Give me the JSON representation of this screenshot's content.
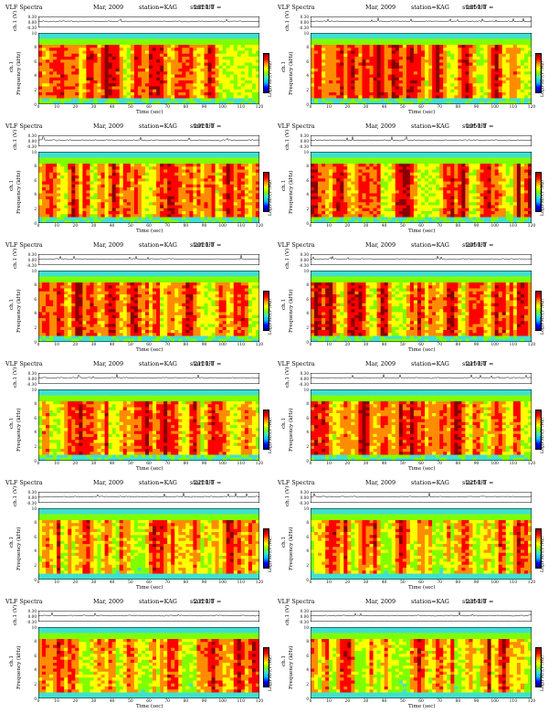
{
  "common": {
    "title": "VLF Spectra",
    "date": "Mar, 2009",
    "station": "station=KAG",
    "start_prefix": "start UT =",
    "ch_label": "ch.1 (V)",
    "ch_ticks": [
      "0.30",
      "0.00",
      "-0.30"
    ],
    "freq_label": "Frequency (kHz)",
    "freq_side_label": "ch.1",
    "freq_ticks": [
      "10",
      "8",
      "6",
      "4",
      "2",
      "0"
    ],
    "time_label": "Time (sec)",
    "time_ticks": [
      "0",
      "10",
      "20",
      "30",
      "40",
      "50",
      "60",
      "70",
      "80",
      "90",
      "100",
      "110",
      "120"
    ],
    "cbar_label": "Log(PSD)(V²/Hz)"
  },
  "panels": [
    {
      "start_ut": "1820:0"
    },
    {
      "start_ut": "1850:0"
    },
    {
      "start_ut": "1920:0"
    },
    {
      "start_ut": "1950:0"
    },
    {
      "start_ut": "2020:0"
    },
    {
      "start_ut": "2050:0"
    },
    {
      "start_ut": "2120:0"
    },
    {
      "start_ut": "2150:0"
    },
    {
      "start_ut": "2220:0"
    },
    {
      "start_ut": "2250:0"
    },
    {
      "start_ut": "2320:0"
    },
    {
      "start_ut": "2350:0"
    }
  ],
  "chart_data": {
    "type": "heatmap",
    "x_range": [
      0,
      120
    ],
    "x_label": "Time (sec)",
    "y_range": [
      0,
      10
    ],
    "y_label": "Frequency (kHz)",
    "colorbar_label": "Log(PSD)(V²/Hz)",
    "colormap": [
      "#00008b",
      "#0000ff",
      "#00bfff",
      "#40e0d0",
      "#7fff00",
      "#ffff00",
      "#ff8c00",
      "#ff0000",
      "#8b0000"
    ],
    "panel_count": 12
  }
}
